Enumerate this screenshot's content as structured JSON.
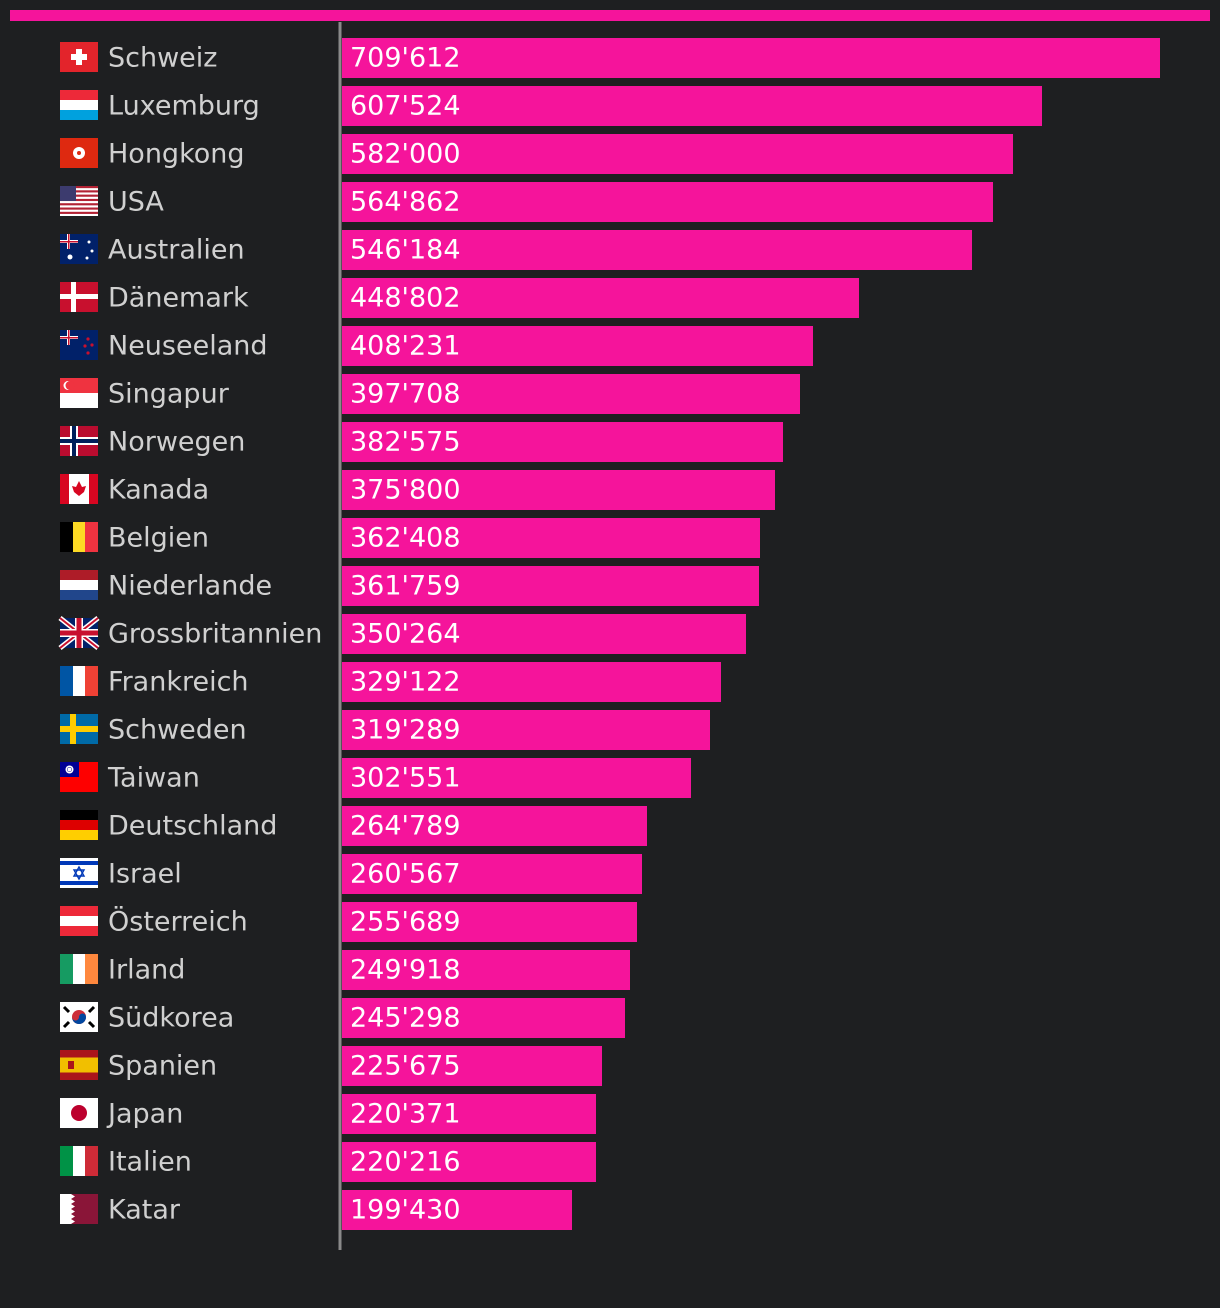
{
  "chart_data": {
    "type": "bar",
    "orientation": "horizontal",
    "title": "",
    "xlabel": "",
    "ylabel": "",
    "xlim": [
      0,
      709612
    ],
    "bar_color": "#f5149b",
    "accent_color": "#f5149b",
    "background_color": "#1e1f21",
    "grid": false,
    "legend": "none",
    "categories": [
      "Schweiz",
      "Luxemburg",
      "Hongkong",
      "USA",
      "Australien",
      "Dänemark",
      "Neuseeland",
      "Singapur",
      "Norwegen",
      "Kanada",
      "Belgien",
      "Niederlande",
      "Grossbritannien",
      "Frankreich",
      "Schweden",
      "Taiwan",
      "Deutschland",
      "Israel",
      "Österreich",
      "Irland",
      "Südkorea",
      "Spanien",
      "Japan",
      "Italien",
      "Katar"
    ],
    "values": [
      709612,
      607524,
      582000,
      564862,
      546184,
      448802,
      408231,
      397708,
      382575,
      375800,
      362408,
      361759,
      350264,
      329122,
      319289,
      302551,
      264789,
      260567,
      255689,
      249918,
      245298,
      225675,
      220371,
      220216,
      199430
    ],
    "value_labels": [
      "709'612",
      "607'524",
      "582'000",
      "564'862",
      "546'184",
      "448'802",
      "408'231",
      "397'708",
      "382'575",
      "375'800",
      "362'408",
      "361'759",
      "350'264",
      "329'122",
      "319'289",
      "302'551",
      "264'789",
      "260'567",
      "255'689",
      "249'918",
      "245'298",
      "225'675",
      "220'371",
      "220'216",
      "199'430"
    ],
    "flag_icons": [
      "flag-switzerland-icon",
      "flag-luxembourg-icon",
      "flag-hongkong-icon",
      "flag-usa-icon",
      "flag-australia-icon",
      "flag-denmark-icon",
      "flag-newzealand-icon",
      "flag-singapore-icon",
      "flag-norway-icon",
      "flag-canada-icon",
      "flag-belgium-icon",
      "flag-netherlands-icon",
      "flag-uk-icon",
      "flag-france-icon",
      "flag-sweden-icon",
      "flag-taiwan-icon",
      "flag-germany-icon",
      "flag-israel-icon",
      "flag-austria-icon",
      "flag-ireland-icon",
      "flag-southkorea-icon",
      "flag-spain-icon",
      "flag-japan-icon",
      "flag-italy-icon",
      "flag-qatar-icon"
    ]
  }
}
